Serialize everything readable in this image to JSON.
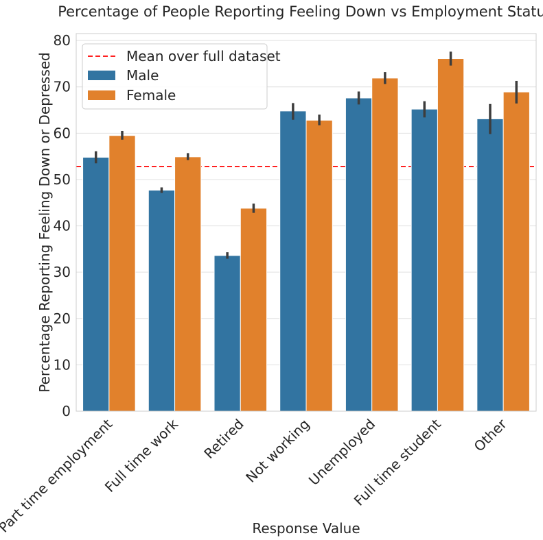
{
  "chart_data": {
    "type": "bar",
    "title": "Percentage of People Reporting Feeling Down vs Employment Status",
    "xlabel": "Response Value",
    "ylabel": "Percentage Reporting Feeling Down or Depressed",
    "categories": [
      "Part time employment",
      "Full time work",
      "Retired",
      "Not working",
      "Unemployed",
      "Full time student",
      "Other"
    ],
    "series": [
      {
        "name": "Male",
        "color": "#3274a1",
        "values": [
          54.8,
          47.7,
          33.6,
          64.8,
          67.6,
          65.2,
          63.1
        ],
        "ci_low": [
          53.5,
          47.1,
          32.9,
          62.9,
          66.2,
          63.4,
          59.8
        ],
        "ci_high": [
          56.1,
          48.3,
          34.3,
          66.5,
          69.0,
          66.9,
          66.3
        ]
      },
      {
        "name": "Female",
        "color": "#e1812c",
        "values": [
          59.5,
          54.9,
          43.8,
          62.8,
          71.9,
          76.1,
          68.9
        ],
        "ci_low": [
          58.6,
          54.2,
          42.8,
          61.7,
          70.6,
          74.6,
          66.4
        ],
        "ci_high": [
          60.5,
          55.7,
          44.8,
          64.0,
          73.2,
          77.6,
          71.3
        ]
      }
    ],
    "mean_line": {
      "name": "Mean over full dataset",
      "value": 52.8,
      "color": "#ff0000"
    },
    "yticks": [
      0,
      10,
      20,
      30,
      40,
      50,
      60,
      70,
      80
    ],
    "ylim": [
      0,
      81.5
    ],
    "grid": true,
    "legend_position": "top-left"
  }
}
